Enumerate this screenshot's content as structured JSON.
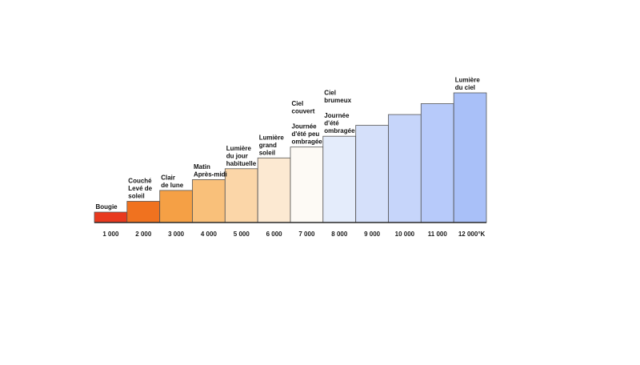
{
  "chart_data": {
    "type": "bar",
    "title": "",
    "xlabel": "",
    "ylabel": "",
    "categories": [
      "1 000",
      "2 000",
      "3 000",
      "4 000",
      "5 000",
      "6 000",
      "7 000",
      "8 000",
      "9 000",
      "10 000",
      "11 000",
      "12 000°K"
    ],
    "x_values": [
      1000,
      2000,
      3000,
      4000,
      5000,
      6000,
      7000,
      8000,
      9000,
      10000,
      11000,
      12000
    ],
    "x_unit": "°K",
    "values": [
      1000,
      2000,
      3000,
      4000,
      5000,
      6000,
      7000,
      8000,
      9000,
      10000,
      11000,
      12000
    ],
    "ylim": [
      0,
      12500
    ],
    "grid": false,
    "legend": "none",
    "colors": [
      "#e8391e",
      "#f0721f",
      "#f5a045",
      "#f9c07a",
      "#fbd6a8",
      "#fce9d2",
      "#fdfaf5",
      "#e4ecfb",
      "#d5e0fa",
      "#c6d5fa",
      "#b7cafa",
      "#a9c0f8"
    ],
    "bar_annotations": [
      [
        "Bougie"
      ],
      [
        "Couché",
        "Levé de",
        "soleil"
      ],
      [
        "Clair",
        "de lune"
      ],
      [
        "Matin",
        "Après-midi"
      ],
      [
        "Lumière",
        "du jour",
        "habituelle"
      ],
      [
        "Lumière",
        "grand",
        "soleil"
      ],
      [
        "Ciel",
        "couvert",
        "",
        "Journée",
        "d'été peu",
        "ombragée"
      ],
      [
        "Ciel",
        "brumeux",
        "",
        "Journée",
        "d'été",
        "ombragée"
      ],
      [],
      [],
      [],
      [
        "Lumière",
        "du ciel"
      ]
    ]
  }
}
